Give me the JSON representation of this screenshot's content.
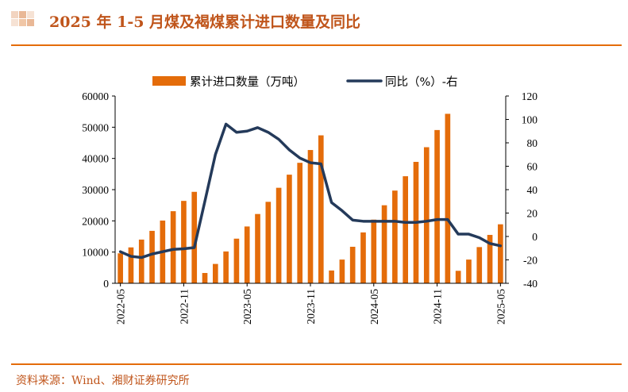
{
  "header": {
    "title": "2025 年 1-5 月煤及褐煤累计进口数量及同比"
  },
  "footer": {
    "source": "资料来源：Wind、湘财证券研究所"
  },
  "colors": {
    "accent": "#e46c0a",
    "title_text": "#c0551b",
    "bar": "#e46c0a",
    "line": "#243a5a"
  },
  "chart_data": {
    "type": "bar",
    "legend": {
      "position": "top",
      "bar_label": "累计进口数量（万吨）",
      "line_label": "同比（%）-右"
    },
    "left_axis": {
      "ylim": [
        0,
        60000
      ],
      "ticks": [
        "0",
        "10000",
        "20000",
        "30000",
        "40000",
        "50000",
        "60000"
      ]
    },
    "right_axis": {
      "ylim": [
        -40,
        120
      ],
      "ticks": [
        "-40",
        "-20",
        "0",
        "20",
        "40",
        "60",
        "80",
        "100",
        "120"
      ]
    },
    "x_tick_labels": [
      "2022-05",
      "2022-11",
      "2023-05",
      "2023-11",
      "2024-05",
      "2024-11",
      "2025-05"
    ],
    "x": [
      "2022-05",
      "2022-06",
      "2022-07",
      "2022-08",
      "2022-09",
      "2022-10",
      "2022-11",
      "2022-12",
      "2023-01",
      "2023-02",
      "2023-03",
      "2023-04",
      "2023-05",
      "2023-06",
      "2023-07",
      "2023-08",
      "2023-09",
      "2023-10",
      "2023-11",
      "2023-12",
      "2024-01",
      "2024-02",
      "2024-03",
      "2024-04",
      "2024-05",
      "2024-06",
      "2024-07",
      "2024-08",
      "2024-09",
      "2024-10",
      "2024-11",
      "2024-12",
      "2025-01",
      "2025-02",
      "2025-03",
      "2025-04",
      "2025-05"
    ],
    "series": [
      {
        "name": "累计进口数量（万吨）",
        "axis": "left",
        "type": "bar",
        "values": [
          9600,
          11500,
          14000,
          16800,
          20100,
          23100,
          26400,
          29300,
          3300,
          6200,
          10200,
          14300,
          18200,
          22200,
          26100,
          30600,
          34800,
          38600,
          42700,
          47400,
          4100,
          7600,
          11700,
          16300,
          20400,
          25000,
          29700,
          34300,
          38900,
          43600,
          49100,
          54300,
          4000,
          7600,
          11600,
          15500,
          18900
        ]
      },
      {
        "name": "同比（%）-右",
        "axis": "right",
        "type": "line",
        "values": [
          -13,
          -17,
          -18,
          -15,
          -13,
          -11,
          -10.5,
          -9.5,
          30,
          70,
          96,
          89,
          90,
          93,
          89,
          83,
          74,
          67,
          63,
          62,
          29,
          22,
          14,
          13,
          13,
          13,
          13,
          12,
          12,
          13,
          14.5,
          14.5,
          2,
          2,
          -1,
          -6,
          -8
        ]
      }
    ]
  }
}
